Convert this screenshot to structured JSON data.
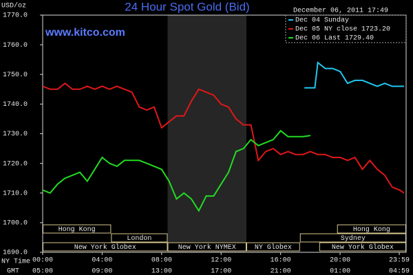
{
  "chart_data": {
    "type": "line",
    "title": "24 Hour Spot Gold (Bid)",
    "timestamp": "December 06, 2011 17:49",
    "website": "www.kitco.com",
    "ylabel": "USD/oz",
    "xlabel": "NY Time",
    "x2label": "GMT",
    "xlim": [
      0,
      24.44
    ],
    "ylim": [
      1690,
      1770
    ],
    "yticks": [
      {
        "value": 1690,
        "label": "1690.0"
      },
      {
        "value": 1700,
        "label": "1700.0"
      },
      {
        "value": 1710,
        "label": "1710.0"
      },
      {
        "value": 1720,
        "label": "1720.0"
      },
      {
        "value": 1730,
        "label": "1730.0"
      },
      {
        "value": 1740,
        "label": "1740.0"
      },
      {
        "value": 1750,
        "label": "1750.0"
      },
      {
        "value": 1760,
        "label": "1760.0"
      },
      {
        "value": 1770,
        "label": "1770.0"
      }
    ],
    "xticks": [
      {
        "value": 0,
        "label": "00:00"
      },
      {
        "value": 4,
        "label": "04:00"
      },
      {
        "value": 8,
        "label": "08:00"
      },
      {
        "value": 12,
        "label": "12:00"
      },
      {
        "value": 16,
        "label": "16:00"
      },
      {
        "value": 20,
        "label": "20:00"
      },
      {
        "value": 23.98,
        "label": "23:59"
      }
    ],
    "x2ticks": [
      {
        "value": 0,
        "label": "05:00"
      },
      {
        "value": 4,
        "label": "09:00"
      },
      {
        "value": 8,
        "label": "13:00"
      },
      {
        "value": 12,
        "label": "17:00"
      },
      {
        "value": 16,
        "label": "21:00"
      },
      {
        "value": 20,
        "label": "01:00"
      },
      {
        "value": 23.98,
        "label": "04:59"
      }
    ],
    "shaded": [
      8.4,
      13.7
    ],
    "session_rows": [
      [
        {
          "label": "Hong Kong",
          "start": 0,
          "end": 4.6
        },
        {
          "label": "Hong Kong",
          "start": 19.8,
          "end": 24.44
        }
      ],
      [
        {
          "label": "London",
          "start": 4.6,
          "end": 8.4
        },
        {
          "label": "Sydney",
          "start": 17.3,
          "end": 24.44
        }
      ],
      [
        {
          "label": "New York Globex",
          "start": 0,
          "end": 8.4
        },
        {
          "label": "New York NYMEX",
          "start": 8.4,
          "end": 13.7
        },
        {
          "label": "NY Globex",
          "start": 13.7,
          "end": 17.3
        },
        {
          "label": "New York Globex",
          "start": 18.6,
          "end": 24.44
        }
      ]
    ],
    "series": [
      {
        "name": "Dec 04 Sunday",
        "color": "#22c8f0",
        "x": [
          17.6,
          18.3,
          18.5,
          19,
          19.5,
          20,
          20.5,
          21,
          21.5,
          22,
          22.5,
          23,
          23.5,
          24,
          24.3
        ],
        "values": [
          1745.5,
          1745.5,
          1754,
          1752,
          1752,
          1751,
          1747,
          1748,
          1748,
          1747,
          1746,
          1747,
          1746,
          1746,
          1746
        ]
      },
      {
        "name": "Dec 05 NY close 1723.20",
        "color": "#e01818",
        "x": [
          0,
          0.5,
          1,
          1.5,
          2,
          2.5,
          3,
          3.5,
          4,
          4.5,
          5,
          5.5,
          6,
          6.5,
          7,
          7.5,
          8,
          8.5,
          9,
          9.5,
          10,
          10.5,
          11,
          11.5,
          12,
          12.5,
          13,
          13.5,
          14,
          14.5,
          15,
          15.5,
          16,
          16.5,
          17,
          17.5,
          18,
          18.5,
          19,
          19.5,
          20,
          20.5,
          21,
          21.5,
          22,
          22.5,
          23,
          23.5,
          24,
          24.3
        ],
        "values": [
          1746,
          1745,
          1745,
          1747,
          1745,
          1745,
          1746,
          1745,
          1746,
          1745,
          1746,
          1745,
          1744,
          1739,
          1738,
          1739,
          1732,
          1734,
          1736,
          1736,
          1741,
          1745,
          1744,
          1743,
          1740,
          1739,
          1735,
          1733,
          1733,
          1721,
          1724,
          1725,
          1723,
          1724,
          1723,
          1723,
          1724,
          1723,
          1723,
          1722,
          1722,
          1721,
          1722,
          1718,
          1721,
          1718,
          1716,
          1712,
          1711,
          1710
        ]
      },
      {
        "name": "Dec 06 Last 1729.40",
        "color": "#22dd22",
        "x": [
          0,
          0.5,
          1,
          1.5,
          2,
          2.5,
          3,
          3.5,
          4,
          4.5,
          5,
          5.5,
          6,
          6.5,
          7,
          7.5,
          8,
          8.5,
          9,
          9.5,
          10,
          10.5,
          11,
          11.5,
          12,
          12.5,
          13,
          13.5,
          14,
          14.5,
          15,
          15.5,
          16,
          16.5,
          17,
          17.5,
          18
        ],
        "values": [
          1711,
          1710,
          1713,
          1715,
          1716,
          1717,
          1714,
          1718,
          1722,
          1720,
          1719,
          1721,
          1721,
          1721,
          1720,
          1719,
          1718,
          1714,
          1708,
          1710,
          1708,
          1704,
          1709,
          1709,
          1713,
          1717,
          1724,
          1725,
          1728,
          1726,
          1727,
          1728,
          1731,
          1729,
          1729,
          1729,
          1729.4
        ]
      }
    ]
  }
}
